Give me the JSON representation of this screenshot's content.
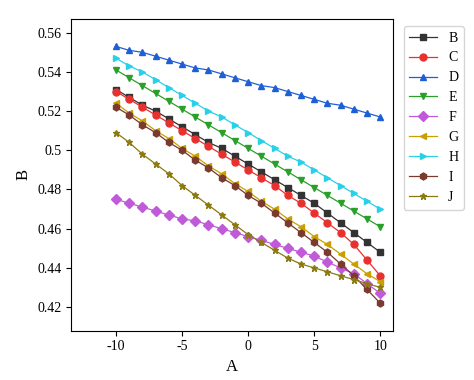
{
  "chart_data": {
    "type": "line",
    "x_label": "A",
    "y_label": "B",
    "x": [
      -10,
      -9,
      -8,
      -7,
      -6,
      -5,
      -4,
      -3,
      -2,
      -1,
      0,
      1,
      2,
      3,
      4,
      5,
      6,
      7,
      8,
      9,
      10
    ],
    "xlim": [
      -13.4,
      11
    ],
    "xticks": [
      -10,
      -5,
      0,
      5,
      10
    ],
    "ylim": [
      0.408,
      0.567
    ],
    "yticks": [
      0.42,
      0.44,
      0.46,
      0.48,
      0.5,
      0.52,
      0.54,
      0.56
    ],
    "grid": false,
    "legend": "upper right",
    "series": [
      {
        "name": "B",
        "color": "#333333",
        "marker": "square",
        "line_style": "solid",
        "values": [
          0.531,
          0.527,
          0.523,
          0.52,
          0.516,
          0.512,
          0.508,
          0.504,
          0.501,
          0.497,
          0.493,
          0.489,
          0.485,
          0.481,
          0.477,
          0.473,
          0.468,
          0.463,
          0.458,
          0.453,
          0.448
        ]
      },
      {
        "name": "C",
        "color": "#e8312f",
        "marker": "circle",
        "line_style": "solid",
        "values": [
          0.53,
          0.526,
          0.522,
          0.518,
          0.514,
          0.51,
          0.506,
          0.502,
          0.498,
          0.494,
          0.49,
          0.486,
          0.482,
          0.477,
          0.473,
          0.468,
          0.463,
          0.458,
          0.452,
          0.444,
          0.436
        ]
      },
      {
        "name": "D",
        "color": "#1f5fd6",
        "marker": "triangle_up",
        "line_style": "solid",
        "values": [
          0.553,
          0.551,
          0.55,
          0.548,
          0.546,
          0.544,
          0.542,
          0.541,
          0.539,
          0.537,
          0.535,
          0.533,
          0.532,
          0.53,
          0.528,
          0.526,
          0.524,
          0.523,
          0.521,
          0.519,
          0.517
        ]
      },
      {
        "name": "E",
        "color": "#2aa02a",
        "marker": "triangle_down",
        "line_style": "solid",
        "values": [
          0.541,
          0.537,
          0.533,
          0.529,
          0.525,
          0.521,
          0.517,
          0.513,
          0.509,
          0.505,
          0.501,
          0.497,
          0.493,
          0.489,
          0.485,
          0.481,
          0.477,
          0.473,
          0.469,
          0.465,
          0.461
        ]
      },
      {
        "name": "F",
        "color": "#c05ad8",
        "marker": "diamond",
        "line_style": "solid",
        "values": [
          0.475,
          0.473,
          0.471,
          0.469,
          0.467,
          0.465,
          0.464,
          0.462,
          0.46,
          0.458,
          0.456,
          0.454,
          0.452,
          0.45,
          0.448,
          0.446,
          0.443,
          0.44,
          0.437,
          0.432,
          0.427
        ]
      },
      {
        "name": "G",
        "color": "#c8a000",
        "marker": "triangle_left",
        "line_style": "solid",
        "values": [
          0.524,
          0.519,
          0.515,
          0.51,
          0.506,
          0.501,
          0.497,
          0.492,
          0.488,
          0.483,
          0.479,
          0.474,
          0.47,
          0.465,
          0.461,
          0.456,
          0.452,
          0.447,
          0.442,
          0.437,
          0.433
        ]
      },
      {
        "name": "H",
        "color": "#28d0e8",
        "marker": "triangle_right",
        "line_style": "solid",
        "values": [
          0.547,
          0.543,
          0.54,
          0.536,
          0.532,
          0.528,
          0.524,
          0.52,
          0.517,
          0.513,
          0.509,
          0.505,
          0.501,
          0.497,
          0.494,
          0.49,
          0.486,
          0.482,
          0.478,
          0.474,
          0.47
        ]
      },
      {
        "name": "I",
        "color": "#7a3a2e",
        "marker": "hexagon",
        "line_style": "solid",
        "values": [
          0.522,
          0.518,
          0.513,
          0.509,
          0.504,
          0.5,
          0.495,
          0.491,
          0.486,
          0.482,
          0.477,
          0.473,
          0.468,
          0.463,
          0.458,
          0.453,
          0.448,
          0.442,
          0.436,
          0.429,
          0.422
        ]
      },
      {
        "name": "J",
        "color": "#8a7a10",
        "marker": "star",
        "line_style": "solid",
        "values": [
          0.509,
          0.504,
          0.498,
          0.493,
          0.488,
          0.482,
          0.477,
          0.472,
          0.467,
          0.462,
          0.457,
          0.453,
          0.449,
          0.445,
          0.442,
          0.44,
          0.438,
          0.436,
          0.434,
          0.432,
          0.43
        ]
      }
    ]
  }
}
